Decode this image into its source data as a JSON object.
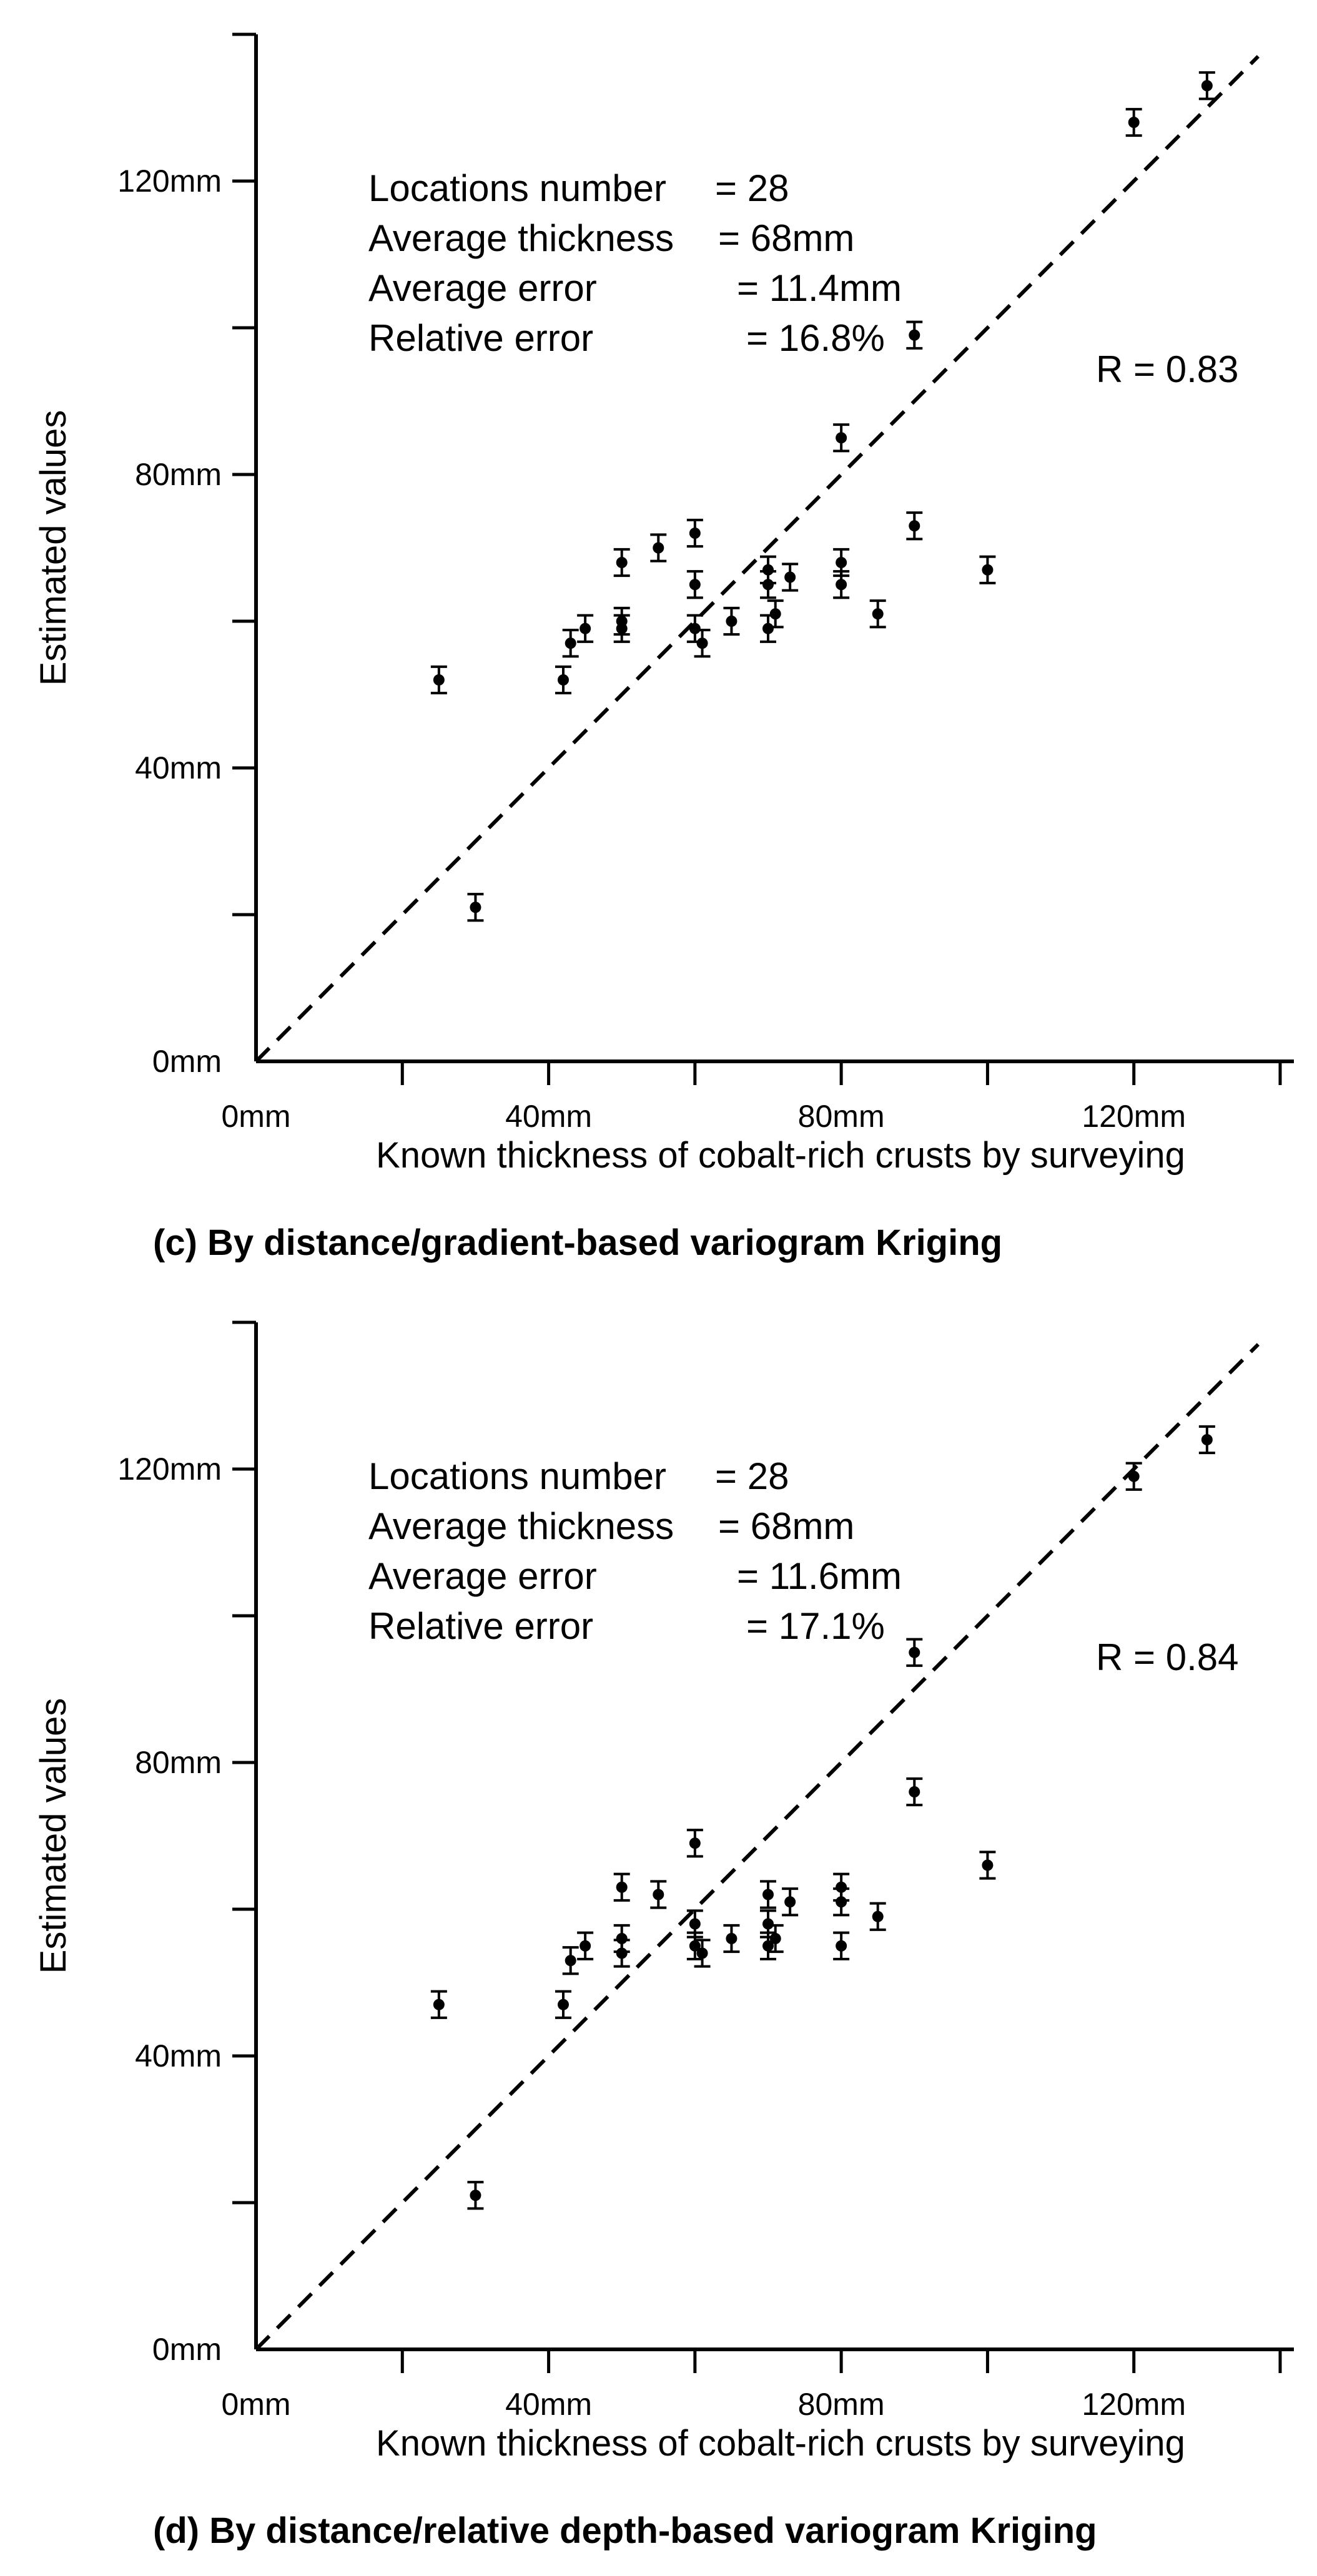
{
  "chart_data": [
    {
      "type": "scatter",
      "caption": "(c) By distance/gradient-based variogram Kriging",
      "xlabel": "Known thickness of cobalt-rich crusts by surveying",
      "ylabel": "Estimated values",
      "xlim": [
        0,
        140
      ],
      "ylim": [
        0,
        140
      ],
      "x_ticks": [
        0,
        40,
        80,
        120
      ],
      "x_tick_labels": [
        "0mm",
        "40mm",
        "80mm",
        "120mm"
      ],
      "y_ticks": [
        0,
        40,
        80,
        120
      ],
      "y_tick_labels": [
        "0mm",
        "40mm",
        "80mm",
        "120mm"
      ],
      "reference_line": "y = x (dashed)",
      "stats": [
        {
          "label": "Locations  number",
          "value": "= 28"
        },
        {
          "label": "Average thickness",
          "value": "= 68mm"
        },
        {
          "label": "Average error",
          "value": "= 11.4mm"
        },
        {
          "label": "Relative error",
          "value": "= 16.8%"
        }
      ],
      "correlation": "R = 0.83",
      "points": [
        {
          "x": 25,
          "y": 52
        },
        {
          "x": 30,
          "y": 21
        },
        {
          "x": 42,
          "y": 52
        },
        {
          "x": 43,
          "y": 57
        },
        {
          "x": 45,
          "y": 59
        },
        {
          "x": 50,
          "y": 59
        },
        {
          "x": 50,
          "y": 60
        },
        {
          "x": 50,
          "y": 68
        },
        {
          "x": 55,
          "y": 70
        },
        {
          "x": 60,
          "y": 72
        },
        {
          "x": 60,
          "y": 65
        },
        {
          "x": 60,
          "y": 59
        },
        {
          "x": 61,
          "y": 57
        },
        {
          "x": 65,
          "y": 60
        },
        {
          "x": 70,
          "y": 67
        },
        {
          "x": 70,
          "y": 65
        },
        {
          "x": 70,
          "y": 59
        },
        {
          "x": 71,
          "y": 61
        },
        {
          "x": 73,
          "y": 66
        },
        {
          "x": 80,
          "y": 85
        },
        {
          "x": 80,
          "y": 68
        },
        {
          "x": 80,
          "y": 65
        },
        {
          "x": 85,
          "y": 61
        },
        {
          "x": 90,
          "y": 73
        },
        {
          "x": 90,
          "y": 99
        },
        {
          "x": 100,
          "y": 67
        },
        {
          "x": 120,
          "y": 128
        },
        {
          "x": 130,
          "y": 133
        }
      ],
      "error_half_width": 1.8
    },
    {
      "type": "scatter",
      "caption": "(d) By distance/relative depth-based variogram Kriging",
      "xlabel": "Known thickness of cobalt-rich crusts by surveying",
      "ylabel": "Estimated values",
      "xlim": [
        0,
        140
      ],
      "ylim": [
        0,
        140
      ],
      "x_ticks": [
        0,
        40,
        80,
        120
      ],
      "x_tick_labels": [
        "0mm",
        "40mm",
        "80mm",
        "120mm"
      ],
      "y_ticks": [
        0,
        40,
        80,
        120
      ],
      "y_tick_labels": [
        "0mm",
        "40mm",
        "80mm",
        "120mm"
      ],
      "reference_line": "y = x (dashed)",
      "stats": [
        {
          "label": "Locations  number",
          "value": "= 28"
        },
        {
          "label": "Average thickness",
          "value": "= 68mm"
        },
        {
          "label": "Average error",
          "value": "= 11.6mm"
        },
        {
          "label": "Relative error",
          "value": "= 17.1%"
        }
      ],
      "correlation": "R = 0.84",
      "points": [
        {
          "x": 25,
          "y": 47
        },
        {
          "x": 30,
          "y": 21
        },
        {
          "x": 42,
          "y": 47
        },
        {
          "x": 43,
          "y": 53
        },
        {
          "x": 45,
          "y": 55
        },
        {
          "x": 50,
          "y": 54
        },
        {
          "x": 50,
          "y": 56
        },
        {
          "x": 50,
          "y": 63
        },
        {
          "x": 55,
          "y": 62
        },
        {
          "x": 60,
          "y": 69
        },
        {
          "x": 60,
          "y": 58
        },
        {
          "x": 60,
          "y": 55
        },
        {
          "x": 61,
          "y": 54
        },
        {
          "x": 65,
          "y": 56
        },
        {
          "x": 70,
          "y": 62
        },
        {
          "x": 70,
          "y": 58
        },
        {
          "x": 70,
          "y": 55
        },
        {
          "x": 71,
          "y": 56
        },
        {
          "x": 73,
          "y": 61
        },
        {
          "x": 80,
          "y": 63
        },
        {
          "x": 80,
          "y": 61
        },
        {
          "x": 80,
          "y": 55
        },
        {
          "x": 85,
          "y": 59
        },
        {
          "x": 90,
          "y": 76
        },
        {
          "x": 90,
          "y": 95
        },
        {
          "x": 100,
          "y": 66
        },
        {
          "x": 120,
          "y": 119
        },
        {
          "x": 130,
          "y": 124
        }
      ],
      "error_half_width": 1.8
    }
  ]
}
